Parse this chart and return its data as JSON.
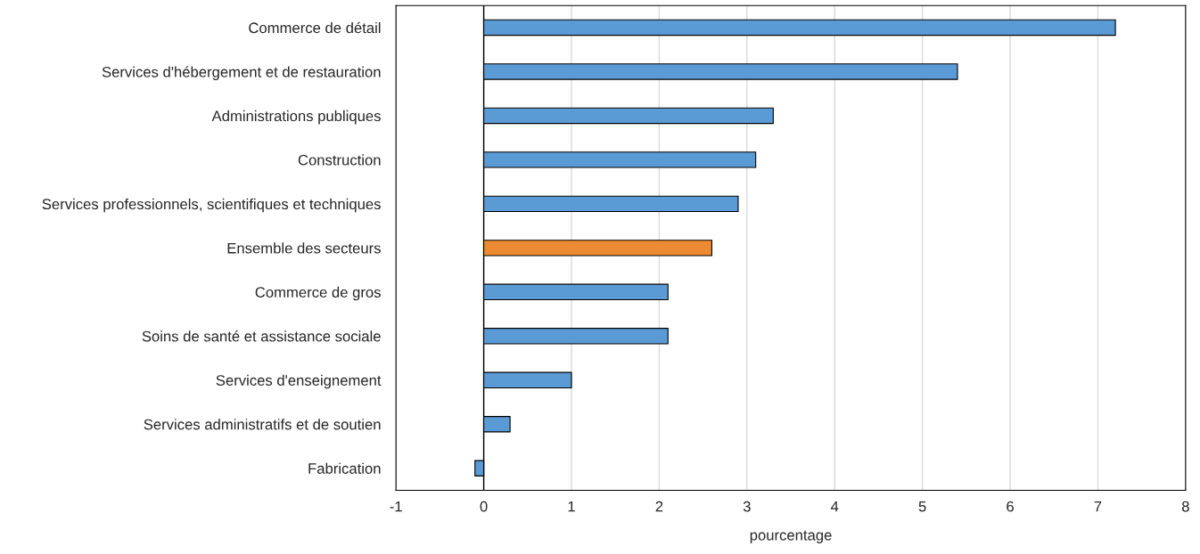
{
  "chart_data": {
    "type": "bar",
    "orientation": "horizontal",
    "xlabel": "pourcentage",
    "categories": [
      "Commerce de détail",
      "Services d'hébergement et de restauration",
      "Administrations publiques",
      "Construction",
      "Services professionnels, scientifiques et techniques",
      "Ensemble des secteurs",
      "Commerce de gros",
      "Soins de santé et assistance sociale",
      "Services d'enseignement",
      "Services administratifs et de soutien",
      "Fabrication"
    ],
    "values": [
      7.2,
      5.4,
      3.3,
      3.1,
      2.9,
      2.6,
      2.1,
      2.1,
      1.0,
      0.3,
      -0.1
    ],
    "colors": [
      "#5b9bd5",
      "#5b9bd5",
      "#5b9bd5",
      "#5b9bd5",
      "#5b9bd5",
      "#ed8b34",
      "#5b9bd5",
      "#5b9bd5",
      "#5b9bd5",
      "#5b9bd5",
      "#5b9bd5"
    ],
    "xlim": [
      -1,
      8
    ],
    "xticks": [
      -1,
      0,
      1,
      2,
      3,
      4,
      5,
      6,
      7,
      8
    ],
    "ref_lines": [
      {
        "axis": "x",
        "value": 0,
        "color": "#000000"
      }
    ],
    "grid": "x",
    "legend": false
  }
}
